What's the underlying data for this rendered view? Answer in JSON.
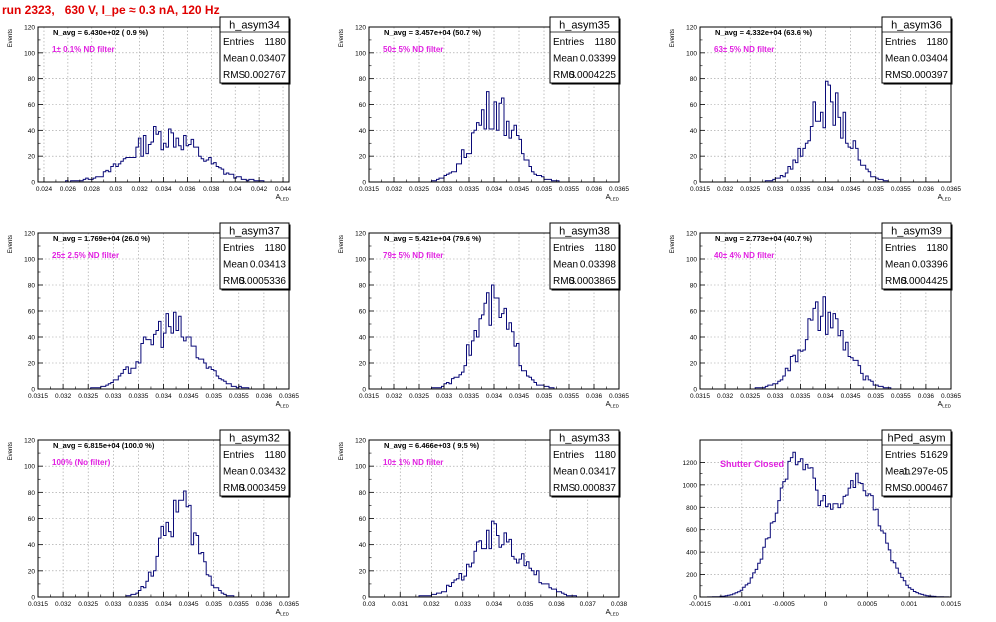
{
  "page": {
    "title": "run 2323,   630 V, I_pe ≈ 0.3 nA, 120 Hz"
  },
  "colors": {
    "histogram_line": "#0a0a78",
    "filter_label": "#e020e0",
    "title": "#e00000",
    "grid": "#9a9a9a"
  },
  "chart_data": [
    {
      "type": "histogram",
      "name": "h_asym34",
      "navg": "N_avg = 6.430e+02 ( 0.9 %)",
      "label": "1± 0.1% ND filter",
      "stats": [
        [
          "Entries",
          "1180"
        ],
        [
          "Mean",
          "0.03407"
        ],
        [
          "RMS",
          "0.002767"
        ]
      ],
      "ylabel": "Events",
      "xlabel": "A_LED",
      "xlim": [
        0.0235,
        0.0445
      ],
      "ylim": [
        0,
        120
      ],
      "xticks": [
        "0.024",
        "0.026",
        "0.028",
        "0.03",
        "0.032",
        "0.034",
        "0.036",
        "0.038",
        "0.04",
        "0.042",
        "0.044"
      ],
      "xtickvals": [
        0.024,
        0.026,
        0.028,
        0.03,
        0.032,
        0.034,
        0.036,
        0.038,
        0.04,
        0.042,
        0.044
      ],
      "yticks": [
        0,
        20,
        40,
        60,
        80,
        100,
        120
      ],
      "shape": {
        "center": 0.0342,
        "width": 0.0028,
        "peak": 36
      }
    },
    {
      "type": "histogram",
      "name": "h_asym35",
      "navg": "N_avg = 3.457e+04 (50.7 %)",
      "label": "50± 5% ND filter",
      "stats": [
        [
          "Entries",
          "1180"
        ],
        [
          "Mean",
          "0.03399"
        ],
        [
          "RMS",
          "0.0004225"
        ]
      ],
      "ylabel": "Events",
      "xlabel": "A_LED",
      "xlim": [
        0.0315,
        0.0365
      ],
      "ylim": [
        0,
        120
      ],
      "xticks": [
        "0.0315",
        "0.032",
        "0.0325",
        "0.033",
        "0.0335",
        "0.034",
        "0.0345",
        "0.035",
        "0.0355",
        "0.036",
        "0.0365"
      ],
      "xtickvals": [
        0.0315,
        0.032,
        0.0325,
        0.033,
        0.0335,
        0.034,
        0.0345,
        0.035,
        0.0355,
        0.036,
        0.0365
      ],
      "yticks": [
        0,
        20,
        40,
        60,
        80,
        100,
        120
      ],
      "shape": {
        "center": 0.034,
        "width": 0.00042,
        "peak": 58
      }
    },
    {
      "type": "histogram",
      "name": "h_asym36",
      "navg": "N_avg = 4.332e+04 (63.6 %)",
      "label": "63± 5% ND filter",
      "stats": [
        [
          "Entries",
          "1180"
        ],
        [
          "Mean",
          "0.03404"
        ],
        [
          "RMS",
          "0.000397"
        ]
      ],
      "ylabel": "Events",
      "xlabel": "A_LED",
      "xlim": [
        0.0315,
        0.0365
      ],
      "ylim": [
        0,
        120
      ],
      "xticks": [
        "0.0315",
        "0.032",
        "0.0325",
        "0.033",
        "0.0335",
        "0.034",
        "0.0345",
        "0.035",
        "0.0355",
        "0.036",
        "0.0365"
      ],
      "xtickvals": [
        0.0315,
        0.032,
        0.0325,
        0.033,
        0.0335,
        0.034,
        0.0345,
        0.035,
        0.0355,
        0.036,
        0.0365
      ],
      "yticks": [
        0,
        20,
        40,
        60,
        80,
        100,
        120
      ],
      "shape": {
        "center": 0.03404,
        "width": 0.0004,
        "peak": 60
      }
    },
    {
      "type": "histogram",
      "name": "h_asym37",
      "navg": "N_avg = 1.769e+04 (26.0 %)",
      "label": "25± 2.5% ND filter",
      "stats": [
        [
          "Entries",
          "1180"
        ],
        [
          "Mean",
          "0.03413"
        ],
        [
          "RMS",
          "0.0005336"
        ]
      ],
      "ylabel": "Events",
      "xlabel": "A_LED",
      "xlim": [
        0.0315,
        0.0365
      ],
      "ylim": [
        0,
        120
      ],
      "xticks": [
        "0.0315",
        "0.032",
        "0.0325",
        "0.033",
        "0.0335",
        "0.034",
        "0.0345",
        "0.035",
        "0.0355",
        "0.036",
        "0.0365"
      ],
      "xtickvals": [
        0.0315,
        0.032,
        0.0325,
        0.033,
        0.0335,
        0.034,
        0.0345,
        0.035,
        0.0355,
        0.036,
        0.0365
      ],
      "yticks": [
        0,
        20,
        40,
        60,
        80,
        100,
        120
      ],
      "shape": {
        "center": 0.03412,
        "width": 0.00053,
        "peak": 48
      }
    },
    {
      "type": "histogram",
      "name": "h_asym38",
      "navg": "N_avg = 5.421e+04 (79.6 %)",
      "label": "79± 5% ND filter",
      "stats": [
        [
          "Entries",
          "1180"
        ],
        [
          "Mean",
          "0.03398"
        ],
        [
          "RMS",
          "0.0003865"
        ]
      ],
      "ylabel": "Events",
      "xlabel": "A_LED",
      "xlim": [
        0.0315,
        0.0365
      ],
      "ylim": [
        0,
        120
      ],
      "xticks": [
        "0.0315",
        "0.032",
        "0.0325",
        "0.033",
        "0.0335",
        "0.034",
        "0.0345",
        "0.035",
        "0.0355",
        "0.036",
        "0.0365"
      ],
      "xtickvals": [
        0.0315,
        0.032,
        0.0325,
        0.033,
        0.0335,
        0.034,
        0.0345,
        0.035,
        0.0355,
        0.036,
        0.0365
      ],
      "yticks": [
        0,
        20,
        40,
        60,
        80,
        100,
        120
      ],
      "shape": {
        "center": 0.03398,
        "width": 0.00039,
        "peak": 62
      }
    },
    {
      "type": "histogram",
      "name": "h_asym39",
      "navg": "N_avg = 2.773e+04 (40.7 %)",
      "label": "40± 4% ND filter",
      "stats": [
        [
          "Entries",
          "1180"
        ],
        [
          "Mean",
          "0.03396"
        ],
        [
          "RMS",
          "0.0004425"
        ]
      ],
      "ylabel": "Events",
      "xlabel": "A_LED",
      "xlim": [
        0.0315,
        0.0365
      ],
      "ylim": [
        0,
        120
      ],
      "xticks": [
        "0.0315",
        "0.032",
        "0.0325",
        "0.033",
        "0.0335",
        "0.034",
        "0.0345",
        "0.035",
        "0.0355",
        "0.036",
        "0.0365"
      ],
      "xtickvals": [
        0.0315,
        0.032,
        0.0325,
        0.033,
        0.0335,
        0.034,
        0.0345,
        0.035,
        0.0355,
        0.036,
        0.0365
      ],
      "yticks": [
        0,
        20,
        40,
        60,
        80,
        100,
        120
      ],
      "shape": {
        "center": 0.03396,
        "width": 0.00044,
        "peak": 55
      }
    },
    {
      "type": "histogram",
      "name": "h_asym32",
      "navg": "N_avg = 6.815e+04 (100.0 %)",
      "label": "100% (No filter)",
      "stats": [
        [
          "Entries",
          "1180"
        ],
        [
          "Mean",
          "0.03432"
        ],
        [
          "RMS",
          "0.0003459"
        ]
      ],
      "ylabel": "Events",
      "xlabel": "A_LED",
      "xlim": [
        0.0315,
        0.0365
      ],
      "ylim": [
        0,
        120
      ],
      "xticks": [
        "0.0315",
        "0.032",
        "0.0325",
        "0.033",
        "0.0335",
        "0.034",
        "0.0345",
        "0.035",
        "0.0355",
        "0.036",
        "0.0365"
      ],
      "xtickvals": [
        0.0315,
        0.032,
        0.0325,
        0.033,
        0.0335,
        0.034,
        0.0345,
        0.035,
        0.0355,
        0.036,
        0.0365
      ],
      "yticks": [
        0,
        20,
        40,
        60,
        80,
        100,
        120
      ],
      "shape": {
        "center": 0.03432,
        "width": 0.00035,
        "peak": 68
      }
    },
    {
      "type": "histogram",
      "name": "h_asym33",
      "navg": "N_avg = 6.466e+03 ( 9.5 %)",
      "label": "10± 1% ND filter",
      "stats": [
        [
          "Entries",
          "1180"
        ],
        [
          "Mean",
          "0.03417"
        ],
        [
          "RMS",
          "0.000837"
        ]
      ],
      "ylabel": "Events",
      "xlabel": "A_LED",
      "xlim": [
        0.03,
        0.038
      ],
      "ylim": [
        0,
        120
      ],
      "xticks": [
        "0.03",
        "0.031",
        "0.032",
        "0.033",
        "0.034",
        "0.035",
        "0.036",
        "0.037",
        "0.038"
      ],
      "xtickvals": [
        0.03,
        0.031,
        0.032,
        0.033,
        0.034,
        0.035,
        0.036,
        0.037,
        0.038
      ],
      "yticks": [
        0,
        20,
        40,
        60,
        80,
        100,
        120
      ],
      "shape": {
        "center": 0.03417,
        "width": 0.00084,
        "peak": 46
      }
    },
    {
      "type": "histogram",
      "name": "hPed_asym",
      "navg": "",
      "label": "Shutter Closed",
      "stats": [
        [
          "Entries",
          "51629"
        ],
        [
          "Mean",
          "-1.297e-05"
        ],
        [
          "RMS",
          "0.000467"
        ]
      ],
      "ylabel": "",
      "xlabel": "",
      "xlim": [
        -0.0015,
        0.0015
      ],
      "ylim": [
        0,
        1400
      ],
      "xticks": [
        "-0.0015",
        "-0.001",
        "-0.0005",
        "0",
        "0.0005",
        "0.001",
        "0.0015"
      ],
      "xtickvals": [
        -0.0015,
        -0.001,
        -0.0005,
        0,
        0.0005,
        0.001,
        0.0015
      ],
      "yticks": [
        0,
        200,
        400,
        600,
        800,
        1000,
        1200
      ],
      "shape": {
        "bimodal": true,
        "centers": [
          -0.00032,
          0.00038
        ],
        "width": 0.00028,
        "peaks": [
          1260,
          1040
        ],
        "mid": 840
      }
    }
  ]
}
